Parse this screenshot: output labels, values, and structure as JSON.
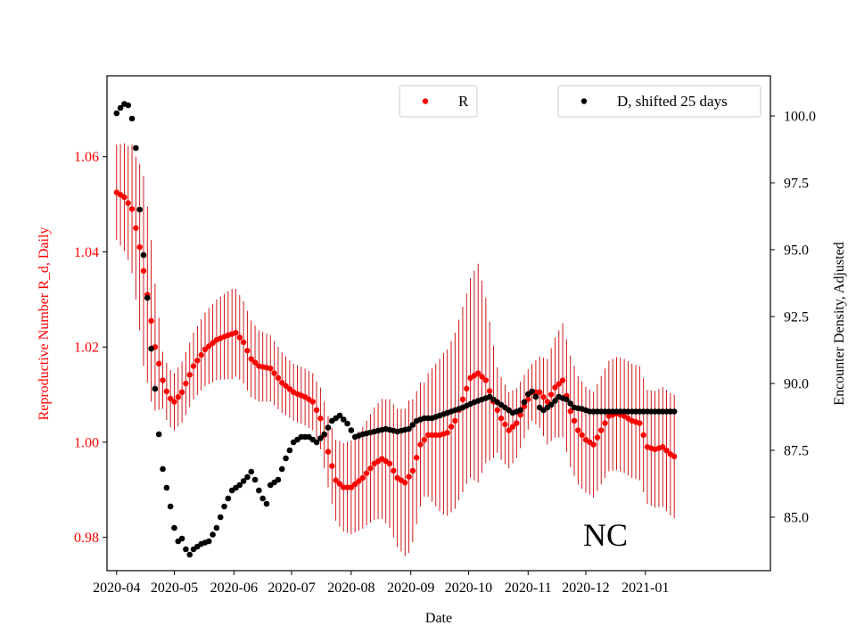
{
  "chart_data": {
    "type": "scatter",
    "region_label": "NC",
    "xlabel": "Date",
    "ylabel_left": "Reproductive Number R_d, Daily",
    "ylabel_right": "Encounter Density, Adjusted",
    "x_range_days": [
      -5,
      340
    ],
    "ylim_left": [
      0.973,
      1.077
    ],
    "ylim_right": [
      83.0,
      101.5
    ],
    "x_ticks": [
      {
        "day": 0,
        "label": "2020-04"
      },
      {
        "day": 30,
        "label": "2020-05"
      },
      {
        "day": 61,
        "label": "2020-06"
      },
      {
        "day": 91,
        "label": "2020-07"
      },
      {
        "day": 122,
        "label": "2020-08"
      },
      {
        "day": 153,
        "label": "2020-09"
      },
      {
        "day": 183,
        "label": "2020-10"
      },
      {
        "day": 214,
        "label": "2020-11"
      },
      {
        "day": 244,
        "label": "2020-12"
      },
      {
        "day": 275,
        "label": "2021-01"
      }
    ],
    "y_ticks_left": [
      {
        "value": 0.98,
        "label": "0.98"
      },
      {
        "value": 1.0,
        "label": "1.00"
      },
      {
        "value": 1.02,
        "label": "1.02"
      },
      {
        "value": 1.04,
        "label": "1.04"
      },
      {
        "value": 1.06,
        "label": "1.06"
      }
    ],
    "y_ticks_right": [
      {
        "value": 85.0,
        "label": "85.0"
      },
      {
        "value": 87.5,
        "label": "87.5"
      },
      {
        "value": 90.0,
        "label": "90.0"
      },
      {
        "value": 92.5,
        "label": "92.5"
      },
      {
        "value": 95.0,
        "label": "95.0"
      },
      {
        "value": 97.5,
        "label": "97.5"
      },
      {
        "value": 100.0,
        "label": "100.0"
      }
    ],
    "legend_r_label": "R",
    "legend_d_label": "D, shifted 25 days",
    "colors": {
      "r": "#ff0000",
      "errorbar": "#cc0000",
      "d": "#000000",
      "left_axis_text": "#ff0000"
    },
    "series": [
      {
        "name": "R",
        "axis": "left",
        "day_start": 0,
        "day_end": 290,
        "step": 2,
        "anchors": [
          [
            0,
            1.0525
          ],
          [
            4,
            1.0515
          ],
          [
            8,
            1.049
          ],
          [
            12,
            1.041
          ],
          [
            16,
            1.031
          ],
          [
            20,
            1.02
          ],
          [
            24,
            1.013
          ],
          [
            27,
            1.0095
          ],
          [
            30,
            1.0085
          ],
          [
            34,
            1.0105
          ],
          [
            40,
            1.016
          ],
          [
            46,
            1.0195
          ],
          [
            52,
            1.0215
          ],
          [
            58,
            1.0225
          ],
          [
            62,
            1.023
          ],
          [
            66,
            1.021
          ],
          [
            70,
            1.0175
          ],
          [
            74,
            1.016
          ],
          [
            80,
            1.0155
          ],
          [
            86,
            1.0125
          ],
          [
            92,
            1.0105
          ],
          [
            98,
            1.0095
          ],
          [
            102,
            1.0085
          ],
          [
            106,
            1.005
          ],
          [
            110,
            0.998
          ],
          [
            114,
            0.992
          ],
          [
            118,
            0.9905
          ],
          [
            122,
            0.9905
          ],
          [
            128,
            0.9925
          ],
          [
            134,
            0.9955
          ],
          [
            138,
            0.9965
          ],
          [
            142,
            0.9955
          ],
          [
            146,
            0.9925
          ],
          [
            150,
            0.9915
          ],
          [
            154,
            0.994
          ],
          [
            158,
            0.9995
          ],
          [
            162,
            1.0015
          ],
          [
            168,
            1.0015
          ],
          [
            172,
            1.002
          ],
          [
            176,
            1.0045
          ],
          [
            180,
            1.009
          ],
          [
            184,
            1.0135
          ],
          [
            188,
            1.0145
          ],
          [
            192,
            1.013
          ],
          [
            196,
            1.0085
          ],
          [
            200,
            1.005
          ],
          [
            204,
            1.0025
          ],
          [
            208,
            1.004
          ],
          [
            212,
            1.0075
          ],
          [
            216,
            1.0105
          ],
          [
            220,
            1.0105
          ],
          [
            224,
            1.0085
          ],
          [
            228,
            1.0115
          ],
          [
            232,
            1.013
          ],
          [
            236,
            1.0065
          ],
          [
            240,
            1.0025
          ],
          [
            244,
            1.0005
          ],
          [
            248,
            0.9995
          ],
          [
            252,
            1.0025
          ],
          [
            256,
            1.0055
          ],
          [
            260,
            1.006
          ],
          [
            264,
            1.0055
          ],
          [
            268,
            1.0045
          ],
          [
            272,
            1.004
          ],
          [
            276,
            0.999
          ],
          [
            280,
            0.9985
          ],
          [
            284,
            0.999
          ],
          [
            288,
            0.9975
          ],
          [
            290,
            0.997
          ]
        ],
        "error_halfwidth_anchors": [
          [
            0,
            0.01
          ],
          [
            6,
            0.012
          ],
          [
            10,
            0.015
          ],
          [
            14,
            0.02
          ],
          [
            18,
            0.017
          ],
          [
            24,
            0.006
          ],
          [
            30,
            0.006
          ],
          [
            40,
            0.007
          ],
          [
            60,
            0.0095
          ],
          [
            74,
            0.0075
          ],
          [
            90,
            0.006
          ],
          [
            104,
            0.006
          ],
          [
            116,
            0.009
          ],
          [
            130,
            0.011
          ],
          [
            140,
            0.013
          ],
          [
            152,
            0.016
          ],
          [
            160,
            0.012
          ],
          [
            170,
            0.017
          ],
          [
            182,
            0.02
          ],
          [
            188,
            0.023
          ],
          [
            198,
            0.009
          ],
          [
            216,
            0.006
          ],
          [
            232,
            0.012
          ],
          [
            246,
            0.011
          ],
          [
            262,
            0.012
          ],
          [
            276,
            0.012
          ],
          [
            290,
            0.013
          ]
        ]
      },
      {
        "name": "D, shifted 25 days",
        "axis": "right",
        "day_start": 0,
        "day_end": 290,
        "step": 2,
        "anchors": [
          [
            0,
            100.1
          ],
          [
            2,
            100.3
          ],
          [
            4,
            100.45
          ],
          [
            6,
            100.4
          ],
          [
            8,
            99.9
          ],
          [
            10,
            98.8
          ],
          [
            12,
            96.5
          ],
          [
            14,
            94.8
          ],
          [
            16,
            93.2
          ],
          [
            18,
            91.3
          ],
          [
            20,
            89.8
          ],
          [
            22,
            88.1
          ],
          [
            24,
            86.8
          ],
          [
            26,
            86.1
          ],
          [
            28,
            85.4
          ],
          [
            30,
            84.6
          ],
          [
            32,
            84.1
          ],
          [
            34,
            84.2
          ],
          [
            36,
            83.8
          ],
          [
            38,
            83.6
          ],
          [
            40,
            83.8
          ],
          [
            44,
            84.0
          ],
          [
            48,
            84.1
          ],
          [
            52,
            84.6
          ],
          [
            56,
            85.4
          ],
          [
            60,
            86.0
          ],
          [
            64,
            86.2
          ],
          [
            68,
            86.5
          ],
          [
            70,
            86.7
          ],
          [
            72,
            86.4
          ],
          [
            74,
            86.0
          ],
          [
            76,
            85.7
          ],
          [
            78,
            85.5
          ],
          [
            80,
            86.2
          ],
          [
            84,
            86.4
          ],
          [
            88,
            87.2
          ],
          [
            92,
            87.8
          ],
          [
            96,
            88.0
          ],
          [
            100,
            88.0
          ],
          [
            104,
            87.8
          ],
          [
            108,
            88.1
          ],
          [
            112,
            88.6
          ],
          [
            116,
            88.8
          ],
          [
            120,
            88.5
          ],
          [
            124,
            88.0
          ],
          [
            128,
            88.1
          ],
          [
            134,
            88.2
          ],
          [
            140,
            88.3
          ],
          [
            146,
            88.2
          ],
          [
            152,
            88.3
          ],
          [
            156,
            88.6
          ],
          [
            160,
            88.7
          ],
          [
            164,
            88.7
          ],
          [
            168,
            88.8
          ],
          [
            172,
            88.9
          ],
          [
            176,
            89.0
          ],
          [
            180,
            89.1
          ],
          [
            186,
            89.3
          ],
          [
            190,
            89.4
          ],
          [
            194,
            89.5
          ],
          [
            198,
            89.3
          ],
          [
            202,
            89.1
          ],
          [
            206,
            88.9
          ],
          [
            210,
            89.0
          ],
          [
            214,
            89.6
          ],
          [
            216,
            89.7
          ],
          [
            218,
            89.5
          ],
          [
            220,
            89.1
          ],
          [
            222,
            89.0
          ],
          [
            226,
            89.2
          ],
          [
            230,
            89.5
          ],
          [
            234,
            89.4
          ],
          [
            238,
            89.1
          ],
          [
            242,
            89.05
          ],
          [
            246,
            88.95
          ],
          [
            250,
            88.95
          ],
          [
            260,
            88.95
          ],
          [
            270,
            88.95
          ],
          [
            280,
            88.95
          ],
          [
            290,
            88.95
          ]
        ]
      }
    ]
  }
}
